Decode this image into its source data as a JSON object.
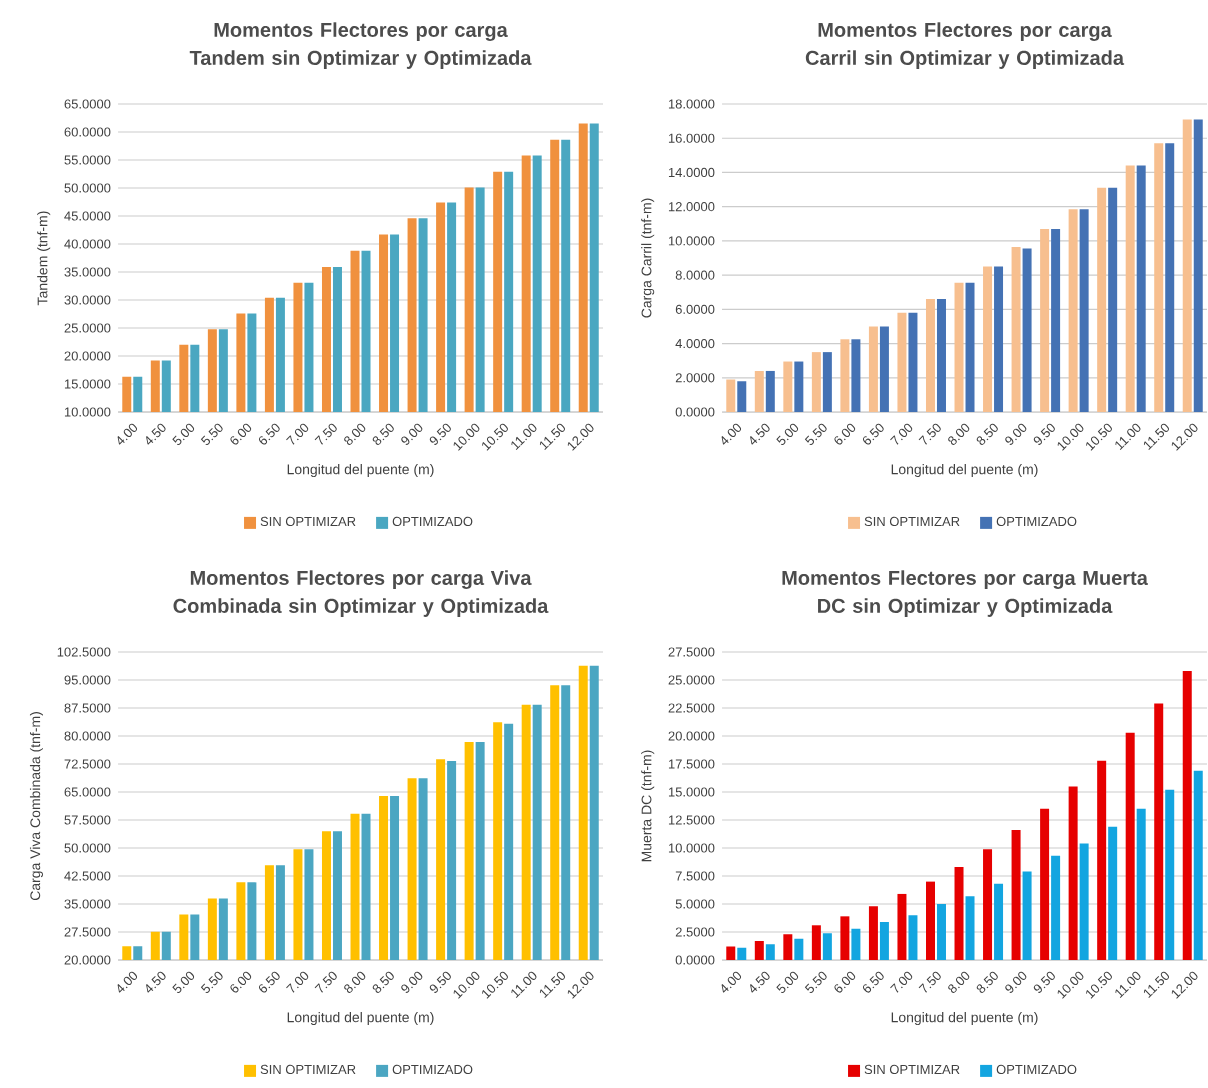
{
  "chart_data": [
    {
      "type": "bar",
      "title": "Momentos Flectores por carga Tandem sin Optimizar y Optimizada",
      "xlabel": "Longitud del puente (m)",
      "ylabel": "Tandem (tnf-m)",
      "categories": [
        "4.00",
        "4.50",
        "5.00",
        "5.50",
        "6.00",
        "6.50",
        "7.00",
        "7.50",
        "8.00",
        "8.50",
        "9.00",
        "9.50",
        "10.00",
        "10.50",
        "11.00",
        "11.50",
        "12.00"
      ],
      "series": [
        {
          "name": "SIN OPTIMIZAR",
          "color": "#f0913e",
          "values": [
            16.3,
            19.2,
            22.0,
            24.8,
            27.6,
            30.4,
            33.1,
            35.9,
            38.8,
            41.7,
            44.6,
            47.4,
            50.1,
            52.9,
            55.8,
            58.6,
            61.5
          ]
        },
        {
          "name": "OPTIMIZADO",
          "color": "#4aa7c1",
          "values": [
            16.3,
            19.2,
            22.0,
            24.8,
            27.6,
            30.4,
            33.1,
            35.9,
            38.8,
            41.7,
            44.6,
            47.4,
            50.1,
            52.9,
            55.8,
            58.6,
            61.5
          ]
        }
      ],
      "ylim": [
        10,
        65
      ],
      "yticks": [
        {
          "value": 10,
          "label": "10.0000"
        },
        {
          "value": 15,
          "label": "15.0000"
        },
        {
          "value": 20,
          "label": "20.0000"
        },
        {
          "value": 25,
          "label": "25.0000"
        },
        {
          "value": 30,
          "label": "30.0000"
        },
        {
          "value": 35,
          "label": "35.0000"
        },
        {
          "value": 40,
          "label": "40.0000"
        },
        {
          "value": 45,
          "label": "45.0000"
        },
        {
          "value": 50,
          "label": "50.0000"
        },
        {
          "value": 55,
          "label": "55.0000"
        },
        {
          "value": 60,
          "label": "60.0000"
        },
        {
          "value": 65,
          "label": "65.0000"
        }
      ],
      "grid": "y",
      "legend": "bottom"
    },
    {
      "type": "bar",
      "title": "Momentos Flectores por carga Carril sin Optimizar y Optimizada",
      "xlabel": "Longitud del puente (m)",
      "ylabel": "Carga Carril (tnf-m)",
      "categories": [
        "4.00",
        "4.50",
        "5.00",
        "5.50",
        "6.00",
        "6.50",
        "7.00",
        "7.50",
        "8.00",
        "8.50",
        "9.00",
        "9.50",
        "10.00",
        "10.50",
        "11.00",
        "11.50",
        "12.00"
      ],
      "series": [
        {
          "name": "SIN OPTIMIZAR",
          "color": "#f7bf8f",
          "values": [
            1.9,
            2.4,
            2.95,
            3.5,
            4.25,
            5.0,
            5.8,
            6.6,
            7.55,
            8.5,
            9.65,
            10.7,
            11.85,
            13.1,
            14.4,
            15.7,
            17.1
          ]
        },
        {
          "name": "OPTIMIZADO",
          "color": "#4472b4",
          "values": [
            1.8,
            2.4,
            2.95,
            3.5,
            4.25,
            5.0,
            5.8,
            6.6,
            7.55,
            8.5,
            9.55,
            10.7,
            11.85,
            13.1,
            14.4,
            15.7,
            17.1
          ]
        }
      ],
      "ylim": [
        0,
        18
      ],
      "yticks": [
        {
          "value": 0,
          "label": "0.0000"
        },
        {
          "value": 2,
          "label": "2.0000"
        },
        {
          "value": 4,
          "label": "4.0000"
        },
        {
          "value": 6,
          "label": "6.0000"
        },
        {
          "value": 8,
          "label": "8.0000"
        },
        {
          "value": 10,
          "label": "10.0000"
        },
        {
          "value": 12,
          "label": "12.0000"
        },
        {
          "value": 14,
          "label": "14.0000"
        },
        {
          "value": 16,
          "label": "16.0000"
        },
        {
          "value": 18,
          "label": "18.0000"
        }
      ],
      "grid": "y",
      "legend": "bottom"
    },
    {
      "type": "bar",
      "title": "Momentos Flectores por carga Viva Combinada sin Optimizar y Optimizada",
      "xlabel": "Longitud del puente (m)",
      "ylabel": "Carga Viva Combinada (tnf-m)",
      "categories": [
        "4.00",
        "4.50",
        "5.00",
        "5.50",
        "6.00",
        "6.50",
        "7.00",
        "7.50",
        "8.00",
        "8.50",
        "9.00",
        "9.50",
        "10.00",
        "10.50",
        "11.00",
        "11.50",
        "12.00"
      ],
      "series": [
        {
          "name": "SIN OPTIMIZAR",
          "color": "#ffc000",
          "values": [
            23.7,
            27.6,
            32.2,
            36.5,
            40.8,
            45.4,
            49.7,
            54.5,
            59.2,
            63.9,
            68.7,
            73.8,
            78.4,
            83.7,
            88.4,
            93.6,
            98.8
          ]
        },
        {
          "name": "OPTIMIZADO",
          "color": "#4ba6c2",
          "values": [
            23.7,
            27.6,
            32.2,
            36.5,
            40.8,
            45.4,
            49.7,
            54.5,
            59.2,
            63.9,
            68.7,
            73.3,
            78.4,
            83.3,
            88.4,
            93.6,
            98.8
          ]
        }
      ],
      "ylim": [
        20,
        102.5
      ],
      "yticks": [
        {
          "value": 20,
          "label": "20.0000"
        },
        {
          "value": 27.5,
          "label": "27.5000"
        },
        {
          "value": 35,
          "label": "35.0000"
        },
        {
          "value": 42.5,
          "label": "42.5000"
        },
        {
          "value": 50,
          "label": "50.0000"
        },
        {
          "value": 57.5,
          "label": "57.5000"
        },
        {
          "value": 65,
          "label": "65.0000"
        },
        {
          "value": 72.5,
          "label": "72.5000"
        },
        {
          "value": 80,
          "label": "80.0000"
        },
        {
          "value": 87.5,
          "label": "87.5000"
        },
        {
          "value": 95,
          "label": "95.0000"
        },
        {
          "value": 102.5,
          "label": "102.5000"
        }
      ],
      "grid": "y",
      "legend": "bottom"
    },
    {
      "type": "bar",
      "title": "Momentos Flectores por carga Muerta DC sin Optimizar y Optimizada",
      "xlabel": "Longitud del puente (m)",
      "ylabel": "Muerta DC (tnf-m)",
      "categories": [
        "4.00",
        "4.50",
        "5.00",
        "5.50",
        "6.00",
        "6.50",
        "7.00",
        "7.50",
        "8.00",
        "8.50",
        "9.00",
        "9.50",
        "10.00",
        "10.50",
        "11.00",
        "11.50",
        "12.00"
      ],
      "series": [
        {
          "name": "SIN OPTIMIZAR",
          "color": "#e60000",
          "values": [
            1.2,
            1.7,
            2.3,
            3.1,
            3.9,
            4.8,
            5.9,
            7.0,
            8.3,
            9.9,
            11.6,
            13.5,
            15.5,
            17.8,
            20.3,
            22.9,
            25.8
          ]
        },
        {
          "name": "OPTIMIZADO",
          "color": "#13a5e0",
          "values": [
            1.1,
            1.4,
            1.9,
            2.4,
            2.8,
            3.4,
            4.0,
            5.0,
            5.7,
            6.8,
            7.9,
            9.3,
            10.4,
            11.9,
            13.5,
            15.2,
            16.9
          ]
        }
      ],
      "ylim": [
        0,
        27.5
      ],
      "yticks": [
        {
          "value": 0,
          "label": "0.0000"
        },
        {
          "value": 2.5,
          "label": "2.5000"
        },
        {
          "value": 5,
          "label": "5.0000"
        },
        {
          "value": 7.5,
          "label": "7.5000"
        },
        {
          "value": 10,
          "label": "10.0000"
        },
        {
          "value": 12.5,
          "label": "12.5000"
        },
        {
          "value": 15,
          "label": "15.0000"
        },
        {
          "value": 17.5,
          "label": "17.5000"
        },
        {
          "value": 20,
          "label": "20.0000"
        },
        {
          "value": 22.5,
          "label": "22.5000"
        },
        {
          "value": 25,
          "label": "25.0000"
        },
        {
          "value": 27.5,
          "label": "27.5000"
        }
      ],
      "grid": "y",
      "legend": "bottom"
    }
  ]
}
